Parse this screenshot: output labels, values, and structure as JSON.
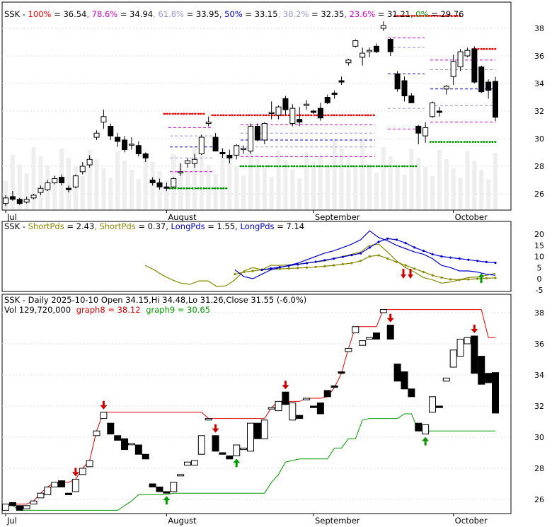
{
  "panel1": {
    "ticker": "SSK",
    "legend": [
      {
        "label": "100%",
        "value": "36.54",
        "color": "#ff0000"
      },
      {
        "label": "78.6%",
        "value": "34.94",
        "color": "#cc00cc"
      },
      {
        "label": "61.8%",
        "value": "33.95",
        "color": "#9999cc"
      },
      {
        "label": "50%",
        "value": "33.15",
        "color": "#0000cc"
      },
      {
        "label": "38.2%",
        "value": "32.35",
        "color": "#9999cc"
      },
      {
        "label": "23.6%",
        "value": "31.21",
        "color": "#cc00cc"
      },
      {
        "label": "0%",
        "value": "29.76",
        "color": "#009900"
      }
    ],
    "y_ticks": [
      "38",
      "36",
      "34",
      "32",
      "30",
      "28",
      "26"
    ]
  },
  "panel2": {
    "ticker": "SSK",
    "legend": [
      {
        "label": "ShortPds",
        "value": "2.43",
        "color": "#888800"
      },
      {
        "label": "ShortPds",
        "value": "0.37",
        "color": "#888800"
      },
      {
        "label": "LongPds",
        "value": "1.55",
        "color": "#0000cc"
      },
      {
        "label": "LongPds",
        "value": "7.14",
        "color": "#0000cc"
      }
    ],
    "y_ticks": [
      "20",
      "15",
      "10",
      "5",
      "0",
      "-5"
    ]
  },
  "panel3": {
    "title": "SSK - Daily 2025-10-10 Open 34.15,Hi 34.48,Lo 31.26,Close 31.55 (-6.0%)",
    "vol": "Vol 129,720,000",
    "graph8": "graph8 = 38.12",
    "graph9": "graph9 = 30.65",
    "y_ticks": [
      "38",
      "36",
      "34",
      "32",
      "30",
      "28",
      "26"
    ]
  },
  "x_labels": [
    "Jul",
    "August",
    "September",
    "October"
  ],
  "chart_data": [
    {
      "type": "candlestick",
      "title": "SSK - Daily 2025-10-10 Open 34.15,Hi 34.48,Lo 31.26,Close 31.55 (-6.0%)",
      "ylim": [
        24.8,
        39.5
      ],
      "x_labels": [
        "Jul",
        "August",
        "September",
        "October"
      ],
      "candles": [
        [
          25.3,
          25.9,
          25.1,
          25.7
        ],
        [
          25.8,
          26.2,
          25.5,
          25.6
        ],
        [
          25.6,
          25.7,
          25.2,
          25.3
        ],
        [
          25.4,
          25.8,
          25.3,
          25.6
        ],
        [
          25.7,
          26.0,
          25.6,
          25.9
        ],
        [
          26.1,
          26.6,
          25.9,
          26.4
        ],
        [
          26.3,
          27.0,
          26.2,
          26.8
        ],
        [
          26.8,
          27.3,
          26.7,
          27.1
        ],
        [
          27.2,
          27.4,
          26.6,
          26.8
        ],
        [
          26.4,
          26.6,
          26.1,
          26.3
        ],
        [
          26.5,
          27.4,
          26.4,
          27.3
        ],
        [
          27.6,
          28.3,
          27.4,
          28.0
        ],
        [
          28.1,
          28.8,
          27.9,
          28.5
        ],
        [
          30.1,
          30.6,
          29.9,
          30.4
        ],
        [
          31.2,
          32.1,
          30.7,
          31.6
        ],
        [
          30.9,
          31.1,
          29.9,
          30.2
        ],
        [
          30.1,
          30.4,
          29.4,
          29.8
        ],
        [
          29.9,
          30.2,
          29.0,
          29.2
        ],
        [
          29.6,
          30.1,
          29.2,
          29.6
        ],
        [
          29.5,
          29.8,
          28.7,
          28.9
        ],
        [
          28.9,
          29.0,
          28.3,
          28.6
        ],
        [
          27.0,
          27.2,
          26.6,
          26.8
        ],
        [
          26.8,
          27.1,
          26.3,
          26.5
        ],
        [
          26.5,
          26.8,
          26.2,
          26.4
        ],
        [
          26.5,
          27.2,
          26.4,
          27.1
        ],
        [
          27.6,
          28.2,
          27.3,
          27.6
        ],
        [
          28.2,
          28.6,
          27.9,
          28.4
        ],
        [
          28.2,
          28.9,
          27.9,
          28.5
        ],
        [
          28.9,
          30.3,
          28.8,
          30.1
        ],
        [
          31.1,
          31.6,
          30.9,
          31.2
        ],
        [
          30.1,
          30.4,
          29.1,
          29.1
        ],
        [
          29.0,
          29.3,
          28.6,
          28.9
        ],
        [
          28.8,
          29.2,
          28.2,
          28.6
        ],
        [
          28.8,
          29.6,
          28.5,
          29.5
        ],
        [
          29.2,
          29.5,
          28.9,
          29.3
        ],
        [
          29.1,
          31.1,
          28.9,
          30.9
        ],
        [
          30.9,
          31.1,
          29.8,
          29.9
        ],
        [
          29.9,
          31.2,
          29.6,
          31.1
        ],
        [
          31.9,
          32.7,
          31.4,
          31.9
        ],
        [
          31.7,
          32.4,
          31.4,
          32.3
        ],
        [
          32.9,
          33.1,
          31.7,
          32.1
        ],
        [
          31.1,
          32.5,
          30.9,
          32.2
        ],
        [
          31.4,
          32.3,
          30.9,
          31.2
        ],
        [
          32.4,
          32.8,
          32.1,
          32.5
        ],
        [
          32.0,
          32.1,
          31.8,
          31.9
        ],
        [
          32.2,
          32.6,
          31.3,
          31.5
        ],
        [
          33.0,
          33.2,
          32.5,
          32.6
        ],
        [
          33.3,
          33.5,
          32.9,
          33.2
        ],
        [
          34.2,
          34.5,
          33.9,
          34.1
        ],
        [
          35.5,
          35.8,
          35.3,
          35.7
        ],
        [
          36.7,
          37.2,
          36.6,
          37.1
        ],
        [
          35.9,
          36.6,
          35.3,
          36.2
        ],
        [
          36.3,
          36.6,
          35.9,
          36.4
        ],
        [
          36.7,
          36.9,
          36.2,
          36.3
        ],
        [
          38.0,
          38.5,
          37.8,
          38.2
        ],
        [
          37.2,
          37.3,
          36.0,
          36.3
        ],
        [
          34.7,
          34.9,
          33.4,
          33.6
        ],
        [
          34.2,
          34.5,
          32.7,
          33.1
        ],
        [
          33.1,
          33.3,
          32.6,
          32.6
        ],
        [
          30.9,
          31.0,
          29.6,
          30.4
        ],
        [
          30.2,
          31.2,
          29.7,
          30.8
        ],
        [
          31.6,
          32.7,
          31.5,
          32.6
        ],
        [
          32.0,
          32.3,
          31.6,
          31.9
        ],
        [
          33.6,
          33.9,
          33.2,
          33.8
        ],
        [
          34.5,
          36.1,
          33.9,
          35.6
        ],
        [
          35.2,
          36.5,
          34.9,
          36.3
        ],
        [
          36.0,
          36.6,
          35.9,
          36.4
        ],
        [
          36.5,
          36.7,
          34.0,
          34.1
        ],
        [
          35.2,
          35.3,
          33.3,
          33.4
        ],
        [
          34.1,
          34.3,
          32.9,
          33.5
        ],
        [
          34.15,
          34.48,
          31.26,
          31.55
        ]
      ]
    },
    {
      "type": "line",
      "ylim": [
        -5.5,
        23
      ],
      "x_labels": [
        "Jul",
        "August",
        "September",
        "October"
      ],
      "series": [
        {
          "name": "ShortPds",
          "values": [
            6.0,
            4.0,
            1.5,
            -0.5,
            -2.0,
            -2.5,
            -1.0,
            -1.0,
            -3.5,
            -3.2,
            -0.5,
            3.5,
            5.0,
            4.0,
            6.0,
            6.0,
            6.2,
            6.5,
            7.0,
            7.5,
            8.0,
            9.0,
            10.0,
            11.0,
            12.0,
            15.0,
            15.5,
            12.0,
            8.0,
            5.0,
            3.0,
            0.5,
            -0.5,
            -2.0,
            -1.5,
            -0.5,
            0.5,
            0.8,
            1.5,
            2.43
          ]
        },
        {
          "name": "ShortPds",
          "values": [
            null,
            null,
            null,
            null,
            null,
            null,
            null,
            null,
            null,
            null,
            2.0,
            3.0,
            3.5,
            4.0,
            4.2,
            4.4,
            4.6,
            4.8,
            5.0,
            5.3,
            5.6,
            6.0,
            6.5,
            7.0,
            8.0,
            10.0,
            10.5,
            9.0,
            7.5,
            6.0,
            4.5,
            3.0,
            1.5,
            0.5,
            -0.3,
            -0.5,
            -0.3,
            0.0,
            0.2,
            0.37
          ]
        },
        {
          "name": "LongPds",
          "values": [
            null,
            null,
            null,
            null,
            null,
            null,
            null,
            null,
            null,
            null,
            4.0,
            1.0,
            0.0,
            2.0,
            4.0,
            5.0,
            6.0,
            7.0,
            8.5,
            10.0,
            11.5,
            12.5,
            14.0,
            15.5,
            17.5,
            21.5,
            18.5,
            17.0,
            15.0,
            13.5,
            12.0,
            11.0,
            9.0,
            6.0,
            5.0,
            3.5,
            3.5,
            3.0,
            2.0,
            1.55
          ]
        },
        {
          "name": "LongPds",
          "values": [
            null,
            null,
            null,
            null,
            null,
            null,
            null,
            null,
            null,
            null,
            null,
            null,
            null,
            4.0,
            4.6,
            5.2,
            5.8,
            6.4,
            7.0,
            7.6,
            8.3,
            9.0,
            9.8,
            10.6,
            11.4,
            14.0,
            16.5,
            18.0,
            17.5,
            16.0,
            14.0,
            12.5,
            11.0,
            10.0,
            9.5,
            9.0,
            8.5,
            8.0,
            7.5,
            7.14
          ]
        }
      ]
    },
    {
      "type": "candlestick",
      "title": "SSK - Daily 2025-10-10 Open 34.15,Hi 34.48,Lo 31.26,Close 31.55 (-6.0%)",
      "ylim": [
        24.8,
        39.5
      ],
      "x_labels": [
        "Jul",
        "August",
        "September",
        "October"
      ],
      "series": [
        {
          "name": "graph8",
          "last": 38.12
        },
        {
          "name": "graph9",
          "last": 30.65
        }
      ]
    }
  ]
}
